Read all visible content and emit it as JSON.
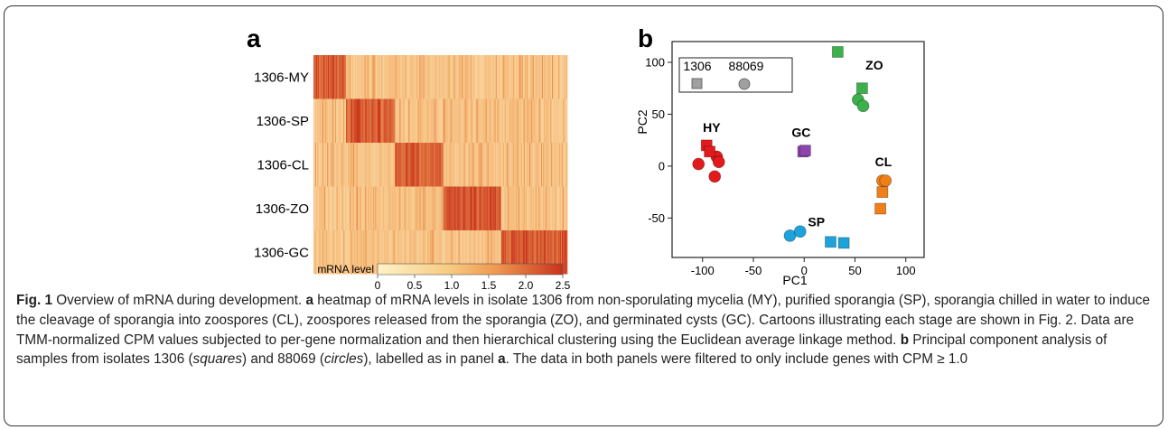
{
  "figure": {
    "panel_a_letter": "a",
    "panel_b_letter": "b"
  },
  "colors": {
    "heat_low": "#fdf3c8",
    "heat_mid": "#f2a35a",
    "heat_high": "#c8321c",
    "HY": "#e31a1c",
    "GC": "#8e44ad",
    "ZO": "#3cb04a",
    "CL": "#f07f1a",
    "SP": "#1ba3dc",
    "legend": "#a0a0a0"
  },
  "chart_data": [
    {
      "type": "heatmap",
      "panel": "a",
      "rows": [
        "1306-MY",
        "1306-SP",
        "1306-CL",
        "1306-ZO",
        "1306-GC"
      ],
      "gene_block_fractions": [
        0.13,
        0.19,
        0.19,
        0.23,
        0.26
      ],
      "colorbar_label": "mRNA level",
      "colorbar_range": [
        0,
        2.5
      ],
      "colorbar_ticks": [
        "0",
        "0.5",
        "1.0",
        "1.5",
        "2.0",
        "2.5"
      ]
    },
    {
      "type": "scatter",
      "panel": "b",
      "xlabel": "PC1",
      "ylabel": "PC2",
      "xlim": [
        -130,
        118
      ],
      "ylim": [
        -88,
        120
      ],
      "xticks": [
        "-100",
        "-50",
        "0",
        "50",
        "100"
      ],
      "yticks": [
        "100",
        "50",
        "0",
        "-50"
      ],
      "legend": {
        "position": "top-left",
        "labels": [
          "1306",
          "88069"
        ]
      },
      "groups": [
        {
          "label": "HY",
          "color_key": "HY",
          "squares": [
            [
              -96,
              20
            ],
            [
              -93,
              14
            ]
          ],
          "circles": [
            [
              -86,
              9
            ],
            [
              -84,
              4
            ],
            [
              -104,
              2
            ],
            [
              -88,
              -10
            ]
          ]
        },
        {
          "label": "GC",
          "color_key": "GC",
          "squares": [
            [
              -1,
              14
            ],
            [
              1,
              15
            ]
          ],
          "circles": []
        },
        {
          "label": "ZO",
          "color_key": "ZO",
          "squares": [
            [
              33,
              110
            ],
            [
              57,
              75
            ]
          ],
          "circles": [
            [
              53,
              64
            ],
            [
              58,
              58
            ]
          ]
        },
        {
          "label": "CL",
          "color_key": "CL",
          "squares": [
            [
              77,
              -25
            ],
            [
              75,
              -41
            ]
          ],
          "circles": [
            [
              77,
              -14
            ],
            [
              80,
              -14
            ]
          ]
        },
        {
          "label": "SP",
          "color_key": "SP",
          "squares": [
            [
              26,
              -73
            ],
            [
              39,
              -74
            ]
          ],
          "circles": [
            [
              -14,
              -67
            ],
            [
              -4,
              -63
            ]
          ]
        }
      ]
    }
  ],
  "caption": {
    "fig_label": "Fig. 1",
    "title": " Overview of mRNA during development. ",
    "a_ref": "a",
    "a_text": " heatmap of mRNA levels in isolate 1306 from non-sporulating mycelia (MY), purified sporangia (SP), sporangia chilled in water to induce the cleavage of sporangia into zoospores (CL), zoospores released from the sporangia (ZO), and germinated cysts (GC). Cartoons illustrating each stage are shown in Fig. 2. Data are TMM-normalized CPM values subjected to per-gene normalization and then hierarchical clustering using the Euclidean average linkage method. ",
    "b_ref": "b",
    "b_text_1": " Principal component analysis of samples from isolates 1306 (",
    "squares_word": "squares",
    "b_text_2": ") and 88069 (",
    "circles_word": "circles",
    "b_text_3": "), labelled as in panel ",
    "a_ref2": "a",
    "b_text_4": ". The data in both panels were filtered to only include genes with CPM ≥ 1.0"
  }
}
